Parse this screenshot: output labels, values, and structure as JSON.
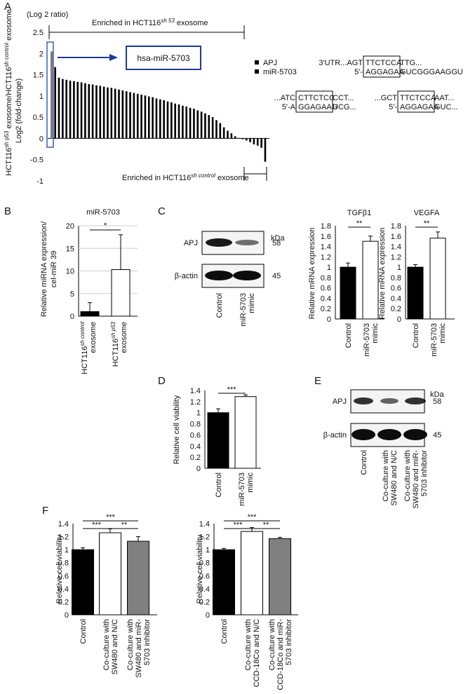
{
  "panels": {
    "A": {
      "letter": "A",
      "axis_top_label": "(Log 2 ratio)",
      "ylabel_line1": "HCT116",
      "ylabel_line1_sup": "sh p53",
      "ylabel_line1_rest": " exosome/HCT116",
      "ylabel_line1_sup2": "sh control",
      "ylabel_line1_tail": " exosome",
      "ylabel_line2": "Log2 (fold-change)",
      "bracket_top_pre": "Enriched in HCT116",
      "bracket_top_sup": "sh 53",
      "bracket_top_post": " exosome",
      "bracket_bottom_pre": "Enriched in HCT116",
      "bracket_bottom_sup": "sh control",
      "bracket_bottom_post": " exosome",
      "callout": "hsa-miR-5703",
      "legend": [
        "APJ",
        "miR-5703"
      ],
      "seq1": {
        "left_top": "3'UTR...AGT",
        "box_top": "TTCTCCA",
        "right_top": " TTG...",
        "left_bot": "5'-",
        "box_bot": "AGGAGAA",
        "right_bot": " GUCGGGAAGGU"
      },
      "seq2": {
        "left_top": "...ATC",
        "box_top": "CTTCTCC",
        "right_top": " CCT...",
        "left_bot": "5'-A",
        "box_bot": "GGAGAAG",
        "right_bot": " UCG..."
      },
      "seq3": {
        "left_top": "...GCT",
        "box_top": "TTCTCCA",
        "right_top": " AAT...",
        "left_bot": "5'-",
        "box_bot": "AGGAGAA",
        "right_bot": " GUC..."
      }
    },
    "B": {
      "letter": "B",
      "title": "miR-5703",
      "ylabel1": "Relative miRNA expression/",
      "ylabel2": "cel-miR 39",
      "sig": "*"
    },
    "C": {
      "letter": "C",
      "kda": "kDa",
      "blot_rows": [
        {
          "name": "APJ",
          "kda": "58"
        },
        {
          "name": "β-actin",
          "kda": "45"
        }
      ],
      "lanes": [
        [
          "Control"
        ],
        [
          "miR-5703",
          "mimic"
        ]
      ]
    },
    "D": {
      "letter": "D",
      "ylabel": "Relative cell viability",
      "sig": "***"
    },
    "E": {
      "letter": "E",
      "kda": "kDa",
      "blot_rows": [
        {
          "name": "APJ",
          "kda": "58"
        },
        {
          "name": "β-actin",
          "kda": "45"
        }
      ],
      "lanes": [
        [
          "Control"
        ],
        [
          "Co-culture with",
          "SW480 and N/C"
        ],
        [
          "Co-culture with",
          "SW480 and miR-",
          "5703 inhibitor"
        ]
      ]
    },
    "F": {
      "letter": "F"
    }
  },
  "chart_data": [
    {
      "id": "A",
      "type": "bar",
      "ylim": [
        -1,
        2.5
      ],
      "yticks": [
        -1,
        -0.5,
        0,
        0.5,
        1,
        1.5,
        2,
        2.5
      ],
      "highlight": "hsa-miR-5703",
      "values": [
        2.05,
        1.68,
        1.43,
        1.4,
        1.38,
        1.36,
        1.35,
        1.33,
        1.32,
        1.3,
        1.28,
        1.27,
        1.25,
        1.24,
        1.22,
        1.2,
        1.19,
        1.17,
        1.15,
        1.13,
        1.11,
        1.09,
        1.07,
        1.05,
        1.03,
        1.01,
        0.99,
        0.97,
        0.94,
        0.92,
        0.9,
        0.87,
        0.85,
        0.82,
        0.8,
        0.77,
        0.75,
        0.72,
        0.7,
        0.66,
        0.63,
        0.59,
        0.55,
        0.5,
        0.43,
        0.36,
        0.26,
        0.18,
        0.12,
        0.05,
        0.01,
        -0.02,
        -0.05,
        -0.09,
        -0.14,
        -0.17,
        -0.22,
        -0.55
      ]
    },
    {
      "id": "B",
      "type": "bar",
      "categories": [
        [
          "HCT116",
          "sh control",
          "exosome"
        ],
        [
          "HCT116",
          "sh p53",
          "exosome"
        ]
      ],
      "values": [
        1,
        10.3
      ],
      "errors": [
        2,
        7.7
      ],
      "ylim": [
        0,
        20
      ],
      "yticks": [
        0,
        5,
        10,
        15,
        20
      ],
      "colors": [
        "#000000",
        "#ffffff"
      ]
    },
    {
      "id": "C-TGFb1",
      "type": "bar",
      "title": "TGFβ1",
      "ylabel": "Relative mRNA expression",
      "categories": [
        [
          "Control"
        ],
        [
          "miR-5703",
          "mimic"
        ]
      ],
      "values": [
        1,
        1.5
      ],
      "errors": [
        0.08,
        0.1
      ],
      "sig": "**",
      "ylim": [
        0,
        1.8
      ],
      "yticks": [
        0,
        0.2,
        0.4,
        0.6,
        0.8,
        1,
        1.2,
        1.4,
        1.6,
        1.8
      ],
      "colors": [
        "#000000",
        "#ffffff"
      ]
    },
    {
      "id": "C-VEGFA",
      "type": "bar",
      "title": "VEGFA",
      "ylabel": "Relative mRNA expression",
      "categories": [
        [
          "Control"
        ],
        [
          "miR-5703",
          "mimic"
        ]
      ],
      "values": [
        1,
        1.56
      ],
      "errors": [
        0.05,
        0.12
      ],
      "sig": "**",
      "ylim": [
        0,
        1.8
      ],
      "yticks": [
        0,
        0.2,
        0.4,
        0.6,
        0.8,
        1,
        1.2,
        1.4,
        1.6,
        1.8
      ],
      "colors": [
        "#000000",
        "#ffffff"
      ]
    },
    {
      "id": "D",
      "type": "bar",
      "categories": [
        [
          "Control"
        ],
        [
          "miR-5703",
          "mimic"
        ]
      ],
      "values": [
        1,
        1.29
      ],
      "errors": [
        0.07,
        0.03
      ],
      "ylim": [
        0,
        1.4
      ],
      "yticks": [
        0,
        0.2,
        0.4,
        0.6,
        0.8,
        1,
        1.2,
        1.4
      ],
      "colors": [
        "#000000",
        "#ffffff"
      ]
    },
    {
      "id": "F-SW480",
      "type": "bar",
      "ylabel": "Relative cell viability",
      "categories": [
        [
          "Control"
        ],
        [
          "Co-culture with",
          "SW480 and N/C"
        ],
        [
          "Co-culture with",
          "SW480 and miR-",
          "5703 inhibitor"
        ]
      ],
      "values": [
        1,
        1.26,
        1.13
      ],
      "errors": [
        0.03,
        0.06,
        0.07
      ],
      "ylim": [
        0,
        1.4
      ],
      "yticks": [
        0,
        0.2,
        0.4,
        0.6,
        0.8,
        1,
        1.2,
        1.4
      ],
      "colors": [
        "#000000",
        "#ffffff",
        "#808080"
      ],
      "sig": [
        {
          "from": 0,
          "to": 2,
          "label": "***"
        },
        {
          "from": 0,
          "to": 1,
          "label": "***"
        },
        {
          "from": 1,
          "to": 2,
          "label": "**"
        }
      ]
    },
    {
      "id": "F-CCD18Co",
      "type": "bar",
      "ylabel": "Relative cell viability",
      "categories": [
        [
          "Control"
        ],
        [
          "Co-culture with",
          "CCD-18Co and N/C"
        ],
        [
          "Co-culture with",
          "CCD-18Co and miR-",
          "5703 inhibitor"
        ]
      ],
      "values": [
        1,
        1.28,
        1.17
      ],
      "errors": [
        0.02,
        0.06,
        0.02
      ],
      "ylim": [
        0,
        1.4
      ],
      "yticks": [
        0,
        0.2,
        0.4,
        0.6,
        0.8,
        1,
        1.2,
        1.4
      ],
      "colors": [
        "#000000",
        "#ffffff",
        "#808080"
      ],
      "sig": [
        {
          "from": 0,
          "to": 2,
          "label": "***"
        },
        {
          "from": 0,
          "to": 1,
          "label": "***"
        },
        {
          "from": 1,
          "to": 2,
          "label": "**"
        }
      ]
    }
  ]
}
